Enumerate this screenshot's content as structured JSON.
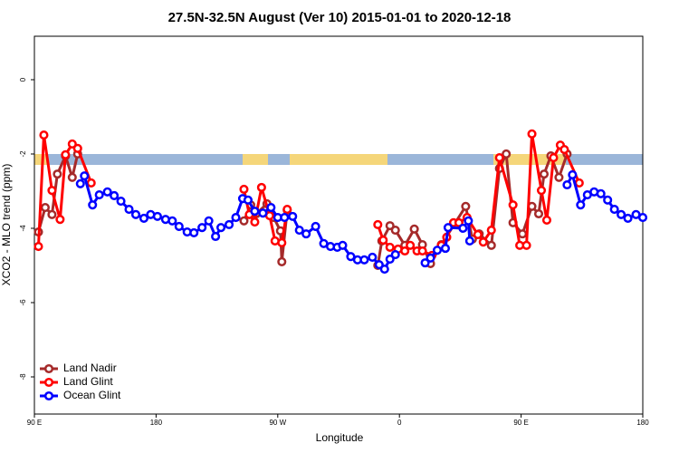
{
  "chart_data": {
    "type": "line",
    "title": "27.5N-32.5N August (Ver 10)   2015-01-01 to 2020-12-18",
    "x_label": "Longitude",
    "y_label": "XCO2 - MLO trend (ppm)",
    "xlim": [
      90,
      540
    ],
    "ylim": [
      -9,
      1.17
    ],
    "xticks": [
      {
        "value": 90,
        "label": "90 E"
      },
      180,
      {
        "value": 270,
        "label": "90 W"
      },
      {
        "value": 360,
        "label": "0"
      },
      {
        "value": 450,
        "label": "90 E"
      },
      {
        "value": 540,
        "label": "180"
      }
    ],
    "yticks": [
      0,
      -2,
      -4,
      -6,
      -8
    ],
    "legend": "bottom-left",
    "series": [
      {
        "name": "Land Nadir",
        "color": "#a52a2a",
        "x": [
          93,
          98,
          103,
          107,
          113,
          118,
          122,
          null,
          245,
          250,
          254,
          262,
          267,
          272,
          273,
          277,
          null,
          344,
          347,
          353,
          357,
          364,
          371,
          377,
          383,
          391,
          409,
          414,
          419,
          428,
          434,
          439,
          444,
          451,
          458,
          463,
          467,
          472,
          478,
          484
        ],
        "values": [
          -4.1,
          -3.44,
          -3.63,
          -2.54,
          -2.05,
          -2.63,
          -2.0,
          null,
          -3.8,
          -3.37,
          -3.61,
          -3.34,
          -3.71,
          -4.07,
          -4.9,
          -3.51,
          null,
          -5.0,
          -4.34,
          -3.93,
          -4.05,
          -4.46,
          -4.02,
          -4.44,
          -4.95,
          -4.44,
          -3.41,
          -4.29,
          -4.15,
          -4.46,
          -2.39,
          -2.0,
          -3.85,
          -4.15,
          -3.41,
          -3.61,
          -2.54,
          -2.05,
          -2.63,
          -2.0
        ]
      },
      {
        "name": "Land Glint",
        "color": "#ff0000",
        "x": [
          93,
          97,
          103,
          109,
          113,
          118,
          122,
          132,
          null,
          245,
          249,
          253,
          258,
          264,
          268,
          273,
          277,
          null,
          344,
          348,
          353,
          359,
          364,
          368,
          373,
          377,
          384,
          391,
          395,
          400,
          404,
          410,
          418,
          422,
          428,
          434,
          444,
          449,
          454,
          458,
          465,
          469,
          474,
          479,
          482,
          493
        ],
        "values": [
          -4.49,
          -1.49,
          -2.98,
          -3.76,
          -2.02,
          -1.73,
          -1.85,
          -2.78,
          null,
          -2.95,
          -3.63,
          -3.83,
          -2.9,
          -3.66,
          -4.34,
          -4.39,
          -3.49,
          null,
          -3.9,
          -4.32,
          -4.51,
          -4.56,
          -4.61,
          -4.46,
          -4.61,
          -4.61,
          -4.73,
          -4.46,
          -4.24,
          -3.85,
          -3.85,
          -3.71,
          -4.17,
          -4.37,
          -4.05,
          -2.1,
          -3.37,
          -4.46,
          -4.46,
          -1.46,
          -2.98,
          -3.78,
          -2.1,
          -1.76,
          -1.88,
          -2.78
        ]
      },
      {
        "name": "Ocean Glint",
        "color": "#0000ff",
        "x": [
          124,
          127,
          133,
          138,
          144,
          149,
          154,
          160,
          165,
          171,
          176,
          181,
          187,
          192,
          197,
          203,
          208,
          214,
          219,
          224,
          228,
          234,
          239,
          244,
          248,
          253,
          259,
          265,
          270,
          275,
          281,
          286,
          291,
          298,
          304,
          309,
          314,
          318,
          324,
          329,
          334,
          340,
          345,
          349,
          353,
          357,
          null,
          379,
          383,
          388,
          394,
          396,
          407,
          411,
          412,
          null,
          484,
          488,
          494,
          499,
          504,
          509,
          514,
          519,
          524,
          529,
          535,
          540
        ],
        "values": [
          -2.8,
          -2.59,
          -3.37,
          -3.1,
          -3.02,
          -3.12,
          -3.27,
          -3.49,
          -3.63,
          -3.73,
          -3.63,
          -3.68,
          -3.76,
          -3.8,
          -3.95,
          -4.1,
          -4.12,
          -3.98,
          -3.8,
          -4.22,
          -3.98,
          -3.9,
          -3.71,
          -3.2,
          -3.24,
          -3.54,
          -3.59,
          -3.44,
          -3.71,
          -3.71,
          -3.68,
          -4.05,
          -4.15,
          -3.95,
          -4.41,
          -4.49,
          -4.51,
          -4.46,
          -4.76,
          -4.85,
          -4.85,
          -4.78,
          -4.98,
          -5.1,
          -4.83,
          -4.71,
          null,
          -4.93,
          -4.8,
          -4.59,
          -4.54,
          -3.98,
          -4.0,
          -3.8,
          -4.34,
          null,
          -2.83,
          -2.56,
          -3.37,
          -3.1,
          -3.02,
          -3.07,
          -3.24,
          -3.49,
          -3.63,
          -3.73,
          -3.63,
          -3.71
        ]
      }
    ]
  }
}
